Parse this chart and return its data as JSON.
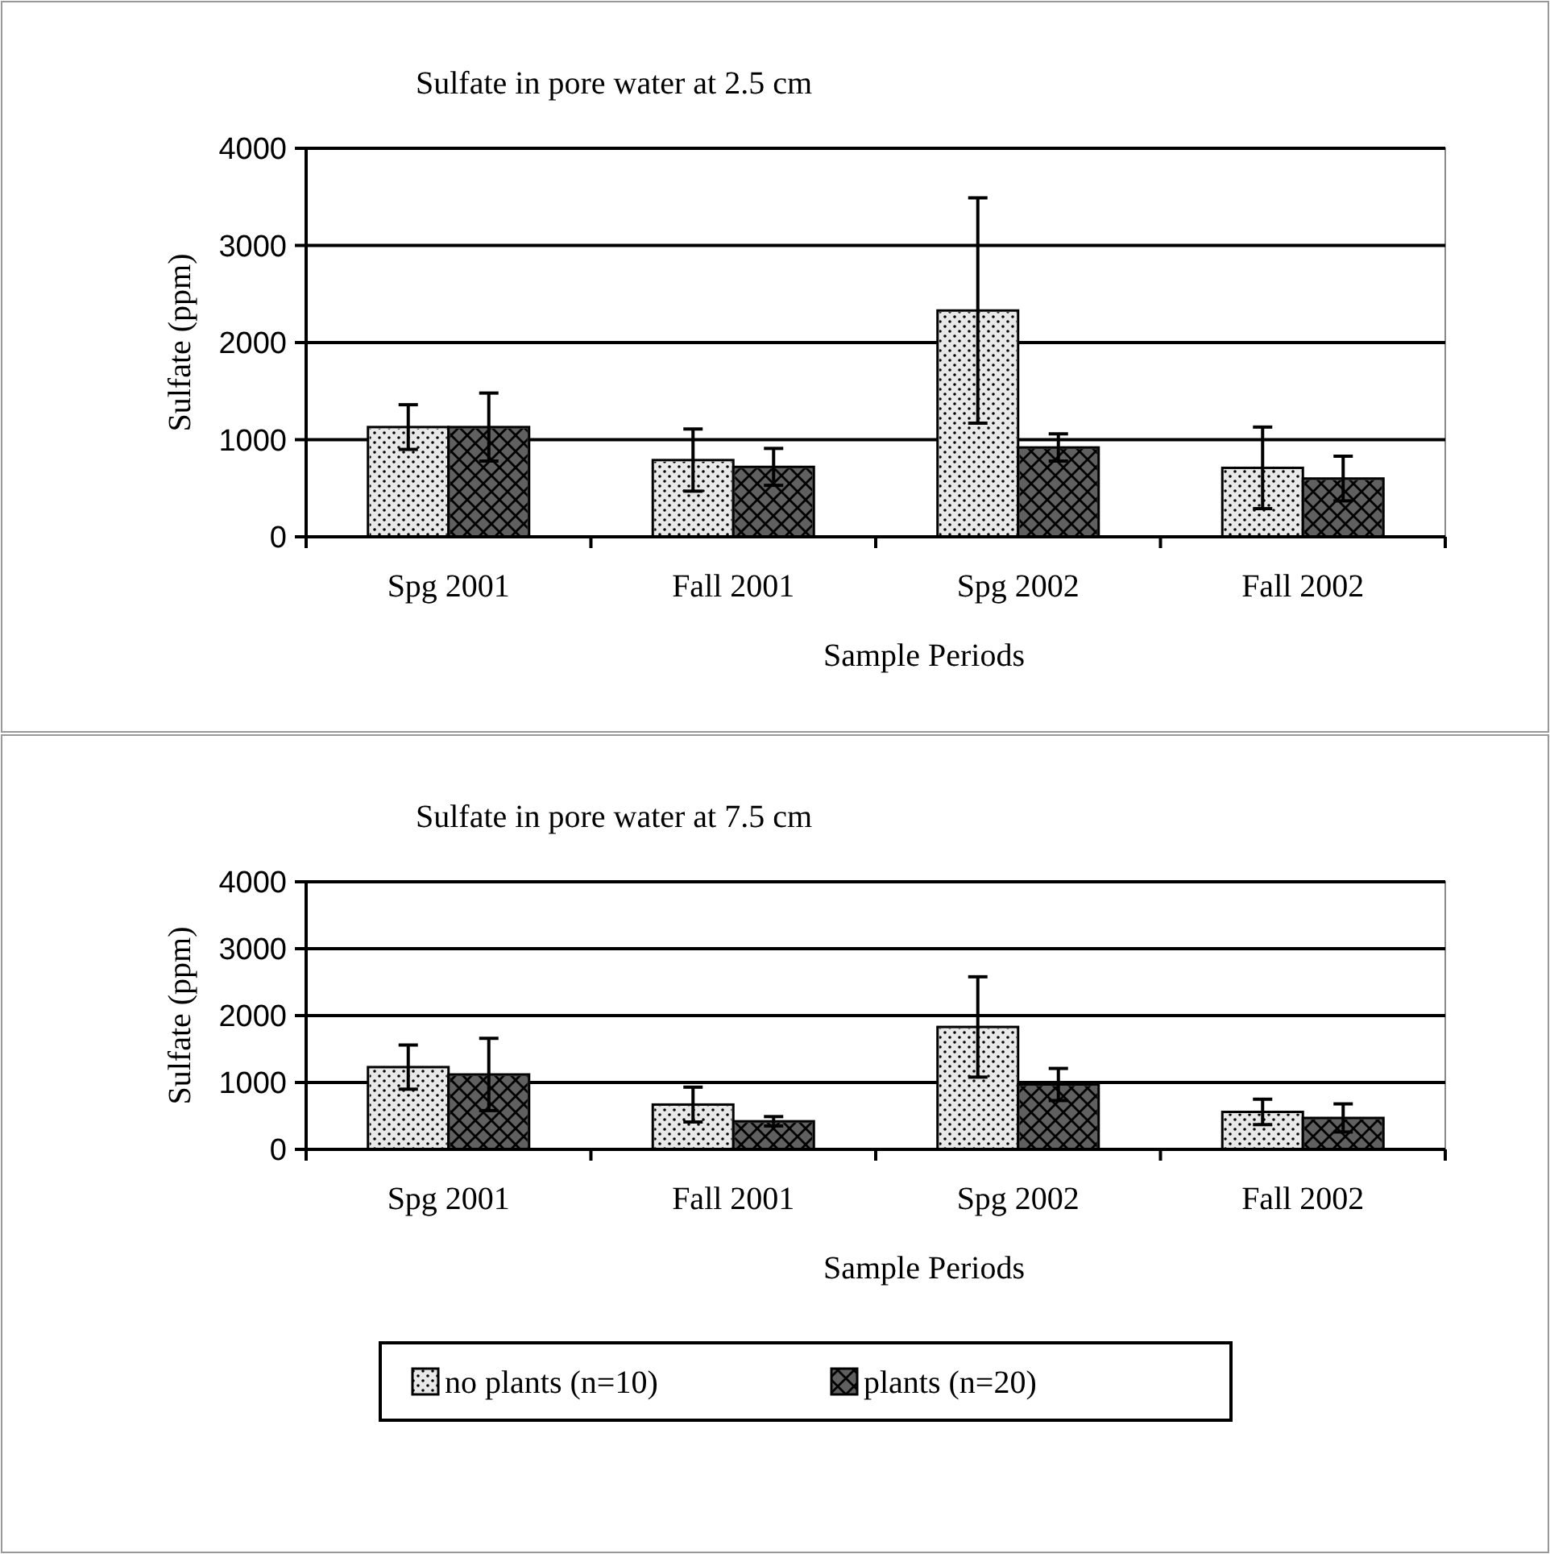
{
  "chart_data": [
    {
      "type": "bar",
      "title": "Sulfate in pore water at 2.5 cm",
      "xlabel": "Sample Periods",
      "ylabel": "Sulfate (ppm)",
      "categories": [
        "Spg 2001",
        "Fall 2001",
        "Spg 2002",
        "Fall 2002"
      ],
      "series": [
        {
          "color": "#e8e8e8",
          "values": [
            1130,
            790,
            2330,
            710
          ],
          "errors": [
            230,
            320,
            1160,
            420
          ]
        },
        {
          "color": "#606060",
          "values": [
            1130,
            720,
            920,
            600
          ],
          "errors": [
            350,
            190,
            140,
            230
          ]
        }
      ],
      "ylim": [
        0,
        4000
      ],
      "yticks": [
        0,
        1000,
        2000,
        3000,
        4000
      ],
      "grid": "y",
      "legend": false
    },
    {
      "type": "bar",
      "title": "Sulfate in pore water at 7.5 cm",
      "xlabel": "Sample Periods",
      "ylabel": "Sulfate (ppm)",
      "categories": [
        "Spg 2001",
        "Fall 2001",
        "Spg 2002",
        "Fall 2002"
      ],
      "series": [
        {
          "name": "no plants (n=10)",
          "color": "#e8e8e8",
          "values": [
            1230,
            670,
            1830,
            560
          ],
          "errors": [
            330,
            260,
            750,
            190
          ]
        },
        {
          "name": "plants (n=20)",
          "color": "#606060",
          "values": [
            1120,
            420,
            970,
            470
          ],
          "errors": [
            540,
            70,
            240,
            210
          ]
        }
      ],
      "ylim": [
        0,
        4000
      ],
      "yticks": [
        0,
        1000,
        2000,
        3000,
        4000
      ],
      "grid": "y",
      "legend": "bottom"
    }
  ]
}
